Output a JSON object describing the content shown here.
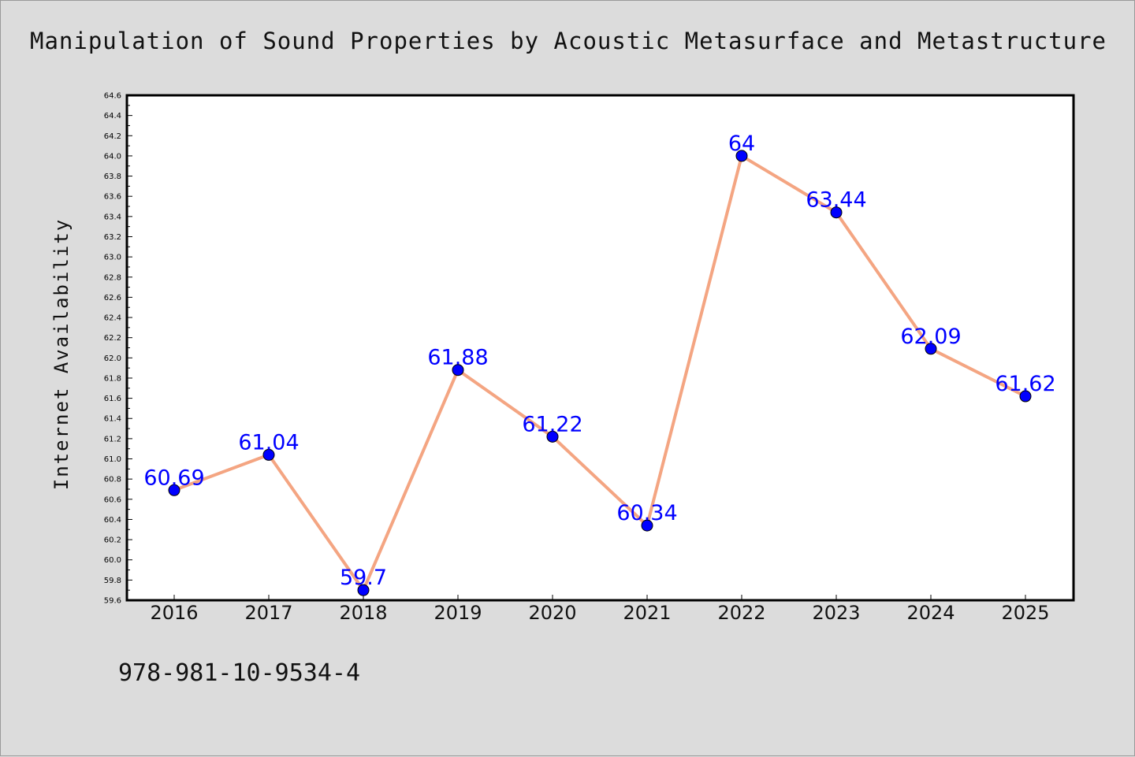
{
  "chart_data": {
    "type": "line",
    "title": "Manipulation of Sound Properties by Acoustic Metasurface and Metastructure",
    "xlabel": "",
    "ylabel": "Internet Availability",
    "categories": [
      "2016",
      "2017",
      "2018",
      "2019",
      "2020",
      "2021",
      "2022",
      "2023",
      "2024",
      "2025"
    ],
    "series": [
      {
        "values": [
          60.69,
          61.04,
          59.7,
          61.88,
          61.22,
          60.34,
          64,
          63.44,
          62.09,
          61.62
        ],
        "line_color": "#f4a582",
        "marker_color": "#0000ff",
        "label_color": "#0000ff"
      }
    ],
    "data_labels": [
      "60.69",
      "61.04",
      "59.7",
      "61.88",
      "61.22",
      "60.34",
      "64",
      "63.44",
      "62.09",
      "61.62"
    ],
    "ylim": [
      59.6,
      64.6
    ],
    "y_ticks": [
      "59.6",
      "59.8",
      "60.0",
      "60.2",
      "60.4",
      "60.6",
      "60.8",
      "61.0",
      "61.2",
      "61.4",
      "61.6",
      "61.8",
      "62.0",
      "62.2",
      "62.4",
      "62.6",
      "62.8",
      "63.0",
      "63.2",
      "63.4",
      "63.6",
      "63.8",
      "64.0",
      "64.2",
      "64.4",
      "64.6"
    ],
    "grid": false,
    "legend": "none"
  },
  "footer_text": "978-981-10-9534-4",
  "colors": {
    "background": "#dcdcdc",
    "plot_area": "#ffffff",
    "axis": "#000000"
  }
}
